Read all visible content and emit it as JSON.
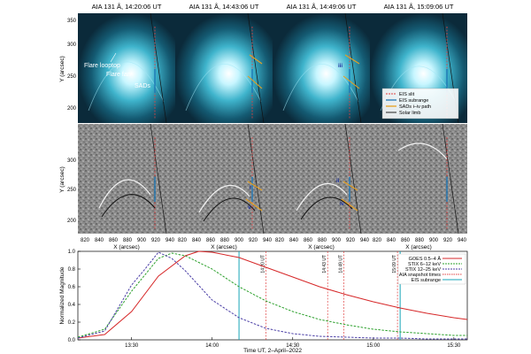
{
  "panel_titles": [
    "AIA 131 Å, 14:20:06 UT",
    "AIA 131 Å, 14:43:06 UT",
    "AIA 131 Å, 14:49:06 UT",
    "AIA 131 Å, 15:09:06 UT"
  ],
  "image_axes": {
    "ylabel": "Y (arcsec)",
    "xlabel": "X (arcsec)",
    "yticks": [
      "200",
      "250",
      "300",
      "350"
    ],
    "xticks": [
      "820",
      "840",
      "860",
      "880",
      "900",
      "920",
      "940"
    ]
  },
  "annotations": {
    "flare_looptop": "Flare looptop",
    "flare_fan": "Flare fan",
    "sads": "SADs",
    "sad_labels": [
      "i",
      "ii",
      "iii",
      "iv",
      "v"
    ]
  },
  "image_legend": [
    {
      "label": "EIS slit",
      "color": "#e04040"
    },
    {
      "label": "EIS subrange",
      "color": "#1f77b4"
    },
    {
      "label": "SADs i–iv path",
      "color": "#e6a020"
    },
    {
      "label": "Solar limb",
      "color": "#222222"
    }
  ],
  "colors": {
    "aia_bg": "#0b2a3a",
    "aia_bright": "#bff4ff",
    "goes": "#d62728",
    "stix_low": "#2ca02c",
    "stix_high": "#4b3fa6",
    "snapshot": "#e04040",
    "subrange": "#17a6b8"
  },
  "chart_data": {
    "type": "line",
    "xlabel": "Time UT, 2–April–2022",
    "ylabel": "Normalized Magnitude",
    "xlim": [
      "13:10",
      "15:35"
    ],
    "ylim": [
      0,
      1.0
    ],
    "xticks": [
      "13:30",
      "14:00",
      "14:30",
      "15:00",
      "15:30"
    ],
    "yticks": [
      "0.0",
      "0.2",
      "0.4",
      "0.6",
      "0.8",
      "1.0"
    ],
    "legend_position": "top-right",
    "series": [
      {
        "name": "GOES 0.5–4 Å",
        "style": "solid",
        "x": [
          "13:10",
          "13:20",
          "13:30",
          "13:40",
          "13:50",
          "13:55",
          "14:00",
          "14:10",
          "14:20",
          "14:30",
          "14:40",
          "14:50",
          "15:00",
          "15:10",
          "15:20",
          "15:30",
          "15:35"
        ],
        "y": [
          0.02,
          0.06,
          0.32,
          0.72,
          0.95,
          1.0,
          0.99,
          0.93,
          0.82,
          0.71,
          0.6,
          0.51,
          0.43,
          0.36,
          0.3,
          0.25,
          0.23
        ]
      },
      {
        "name": "STIX 6–12 keV",
        "style": "dashed",
        "x": [
          "13:10",
          "13:20",
          "13:30",
          "13:40",
          "13:45",
          "13:50",
          "14:00",
          "14:10",
          "14:20",
          "14:30",
          "14:40",
          "14:50",
          "15:00",
          "15:10",
          "15:20",
          "15:30",
          "15:35"
        ],
        "y": [
          0.03,
          0.12,
          0.55,
          0.92,
          0.98,
          0.95,
          0.8,
          0.6,
          0.44,
          0.32,
          0.23,
          0.17,
          0.12,
          0.09,
          0.07,
          0.05,
          0.05
        ]
      },
      {
        "name": "STIX 12–25 keV",
        "style": "dashed",
        "x": [
          "13:10",
          "13:20",
          "13:30",
          "13:35",
          "13:40",
          "13:45",
          "13:50",
          "14:00",
          "14:10",
          "14:20",
          "14:30",
          "14:40",
          "14:50",
          "15:00",
          "15:10",
          "15:20",
          "15:35"
        ],
        "y": [
          0.02,
          0.1,
          0.62,
          0.8,
          0.99,
          0.92,
          0.78,
          0.45,
          0.25,
          0.13,
          0.07,
          0.04,
          0.03,
          0.02,
          0.02,
          0.01,
          0.01
        ]
      }
    ],
    "snapshot_times": {
      "name": "AIA snapshot times",
      "x": [
        "14:20",
        "14:43",
        "14:49",
        "15:09"
      ],
      "labels": [
        "14:20 UT",
        "14:43 UT",
        "14:49 UT",
        "15:09 UT"
      ]
    },
    "eis_subrange": {
      "name": "EIS subrange",
      "x": [
        "14:10",
        "15:10"
      ]
    }
  }
}
